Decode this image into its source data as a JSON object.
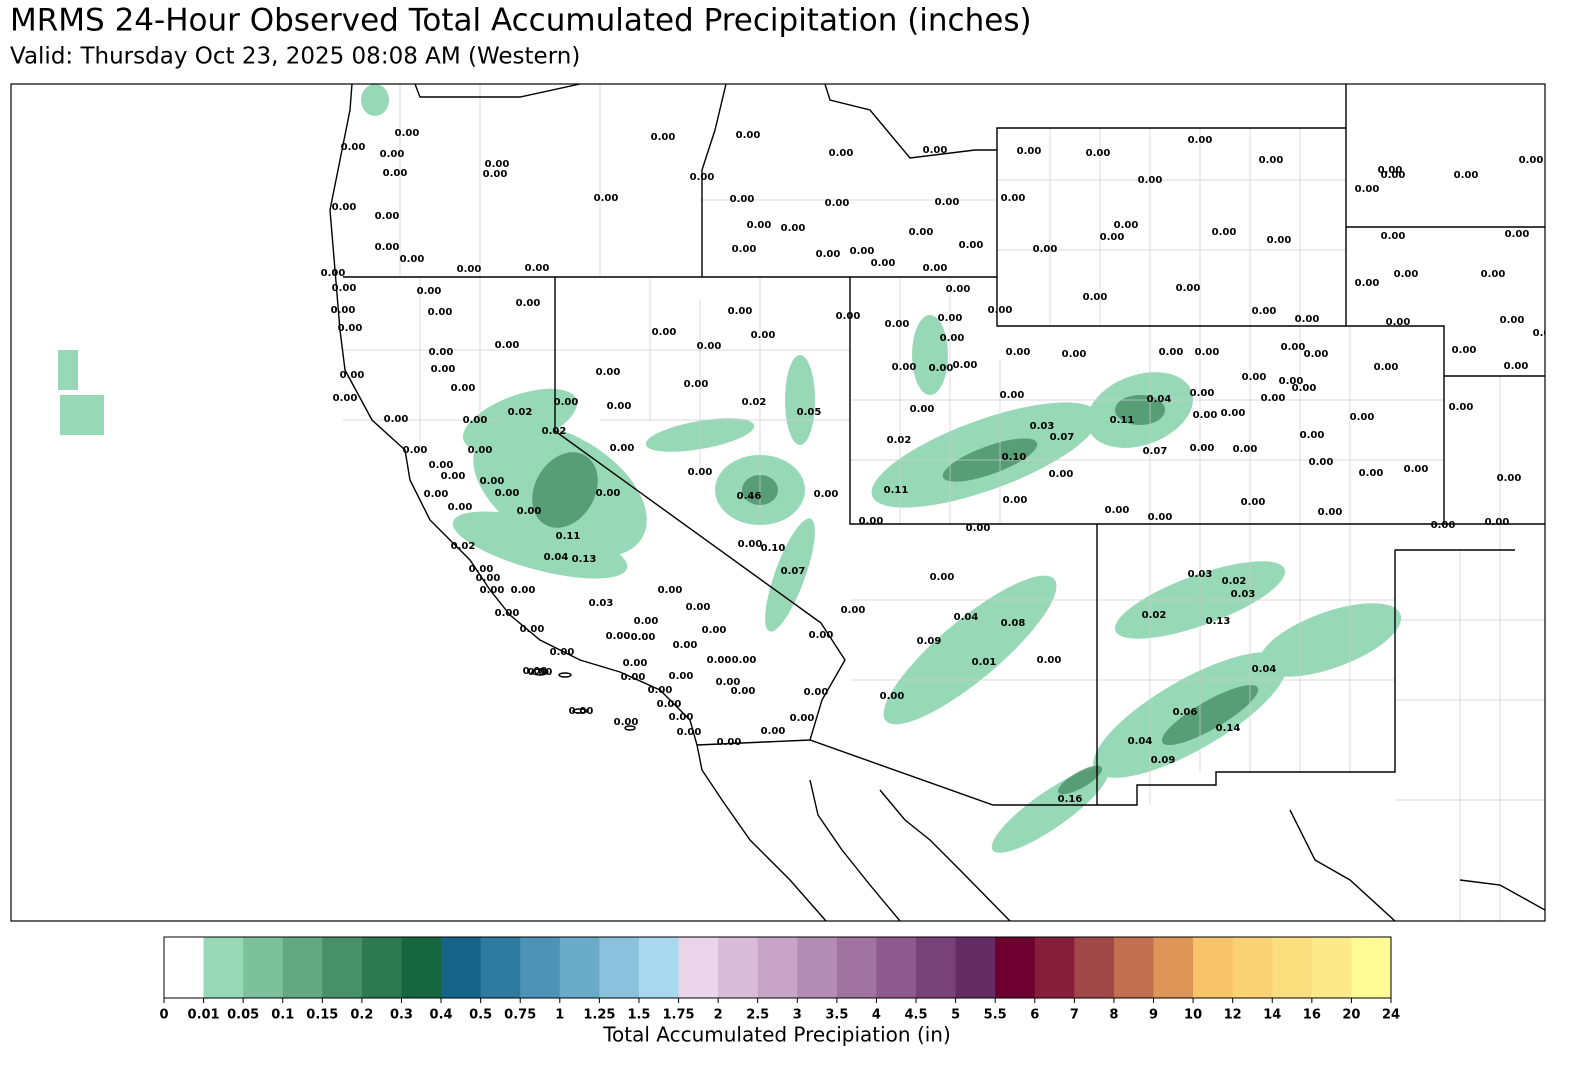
{
  "header": {
    "title": "MRMS 24-Hour Observed Total Accumulated Precipitation (inches)",
    "subtitle": "Valid: Thursday Oct 23, 2025 08:08 AM (Western)"
  },
  "map": {
    "station_labels": [
      "0.02",
      "0.02",
      "0.11",
      "0.04",
      "0.13",
      "0.02",
      "0.03",
      "0.02",
      "0.05",
      "0.46",
      "0.10",
      "0.07",
      "0.02",
      "0.11",
      "0.03",
      "0.07",
      "0.10",
      "0.04",
      "0.11",
      "0.07",
      "0.04",
      "0.08",
      "0.09",
      "0.01",
      "0.16",
      "0.03",
      "0.02",
      "0.03",
      "0.02",
      "0.13",
      "0.04",
      "0.06",
      "0.14",
      "0.04",
      "0.09",
      "0.00",
      "0.00",
      "0.00",
      "0.00",
      "0.00",
      "0.00",
      "0.00",
      "0.00",
      "0.00",
      "0.00",
      "0.00",
      "0.00",
      "0.00",
      "0.00",
      "0.00",
      "0.00",
      "0.00",
      "0.00",
      "0.00",
      "0.00",
      "0.00",
      "0.00",
      "0.00",
      "0.00",
      "0.00",
      "0.00",
      "0.00",
      "0.00",
      "0.00",
      "0.00",
      "0.00",
      "0.00",
      "0.00",
      "0.00",
      "0.00",
      "0.00",
      "0.00",
      "0.00",
      "0.00",
      "0.00",
      "0.00",
      "0.00",
      "0.00",
      "0.00",
      "0.00",
      "0.00",
      "0.00",
      "0.00",
      "0.00",
      "0.00",
      "0.00",
      "0.00",
      "0.00",
      "0.00",
      "0.00",
      "0.00",
      "0.00",
      "0.00",
      "0.00",
      "0.00",
      "0.00",
      "0.00",
      "0.00",
      "0.00",
      "0.00",
      "0.00",
      "0.00",
      "0.00",
      "0.00",
      "0.00",
      "0.00",
      "0.00",
      "0.00",
      "0.00",
      "0.00",
      "0.00",
      "0.00",
      "0.00",
      "0.00",
      "0.00",
      "0.00",
      "0.00",
      "0.00",
      "0.00",
      "0.00",
      "0.00",
      "0.00",
      "0.00",
      "0.00",
      "0.00",
      "0.00",
      "0.00",
      "0.00",
      "0.00",
      "0.00",
      "0.00",
      "0.00",
      "0.00",
      "0.00",
      "0.00",
      "0.00",
      "0.00",
      "0.00",
      "0.00",
      "0.00",
      "0.00",
      "0.00",
      "0.00",
      "0.00",
      "0.00",
      "0.00",
      "0.00",
      "0.00",
      "0.00",
      "0.00",
      "0.00",
      "0.00",
      "0.00",
      "0.00",
      "0.00",
      "0.00",
      "0.00",
      "0.00",
      "0.00",
      "0.00",
      "0.00",
      "0.00",
      "0.00",
      "0.00",
      "0.00",
      "0.00",
      "0.00",
      "0.00",
      "0.00",
      "0.00",
      "0.00",
      "0.00",
      "0.00",
      "0.00",
      "0.00",
      "0.00",
      "0.00",
      "0.00",
      "0.00",
      "0.00",
      "0.00",
      "0.00",
      "0.00",
      "0.00",
      "0.00",
      "0.00",
      "0.00",
      "0.00",
      "0.00",
      "0.00",
      "0.00",
      "0.00",
      "0.00",
      "0.00",
      "0.00",
      "0.00",
      "0.00",
      "0.00",
      "0.00",
      "0.00",
      "0.00",
      "0.00",
      "0.00",
      "0.00",
      "0.00",
      "0.00",
      "0.00",
      "0.00",
      "0.00",
      "0.00",
      "0.00",
      "0.00",
      "0.00",
      "0.00"
    ]
  },
  "colorbar": {
    "label": "Total Accumulated Precipiation (in)",
    "ticks": [
      0,
      0.01,
      0.05,
      0.1,
      0.15,
      0.2,
      0.3,
      0.4,
      0.5,
      0.75,
      1,
      1.25,
      1.5,
      1.75,
      2,
      2.5,
      3,
      3.5,
      4,
      4.5,
      5,
      5.5,
      6,
      7,
      8,
      9,
      10,
      12,
      14,
      16,
      20,
      24
    ],
    "colors": [
      "#ffffff",
      "#97d8b6",
      "#7dc09c",
      "#63a880",
      "#489068",
      "#2e7a50",
      "#15663e",
      "#166588",
      "#2e7aa0",
      "#4d93b8",
      "#6aabc9",
      "#8ac1dc",
      "#a8d9ee",
      "#ead5ea",
      "#d8bcd8",
      "#c8a4c8",
      "#b48db4",
      "#a073a0",
      "#8c5a8c",
      "#774277",
      "#632d63",
      "#6e0030",
      "#871e3c",
      "#a04848",
      "#c07050",
      "#dd9558",
      "#f8c46a",
      "#fad273",
      "#fbde7e",
      "#fce98a",
      "#fefa96"
    ]
  }
}
